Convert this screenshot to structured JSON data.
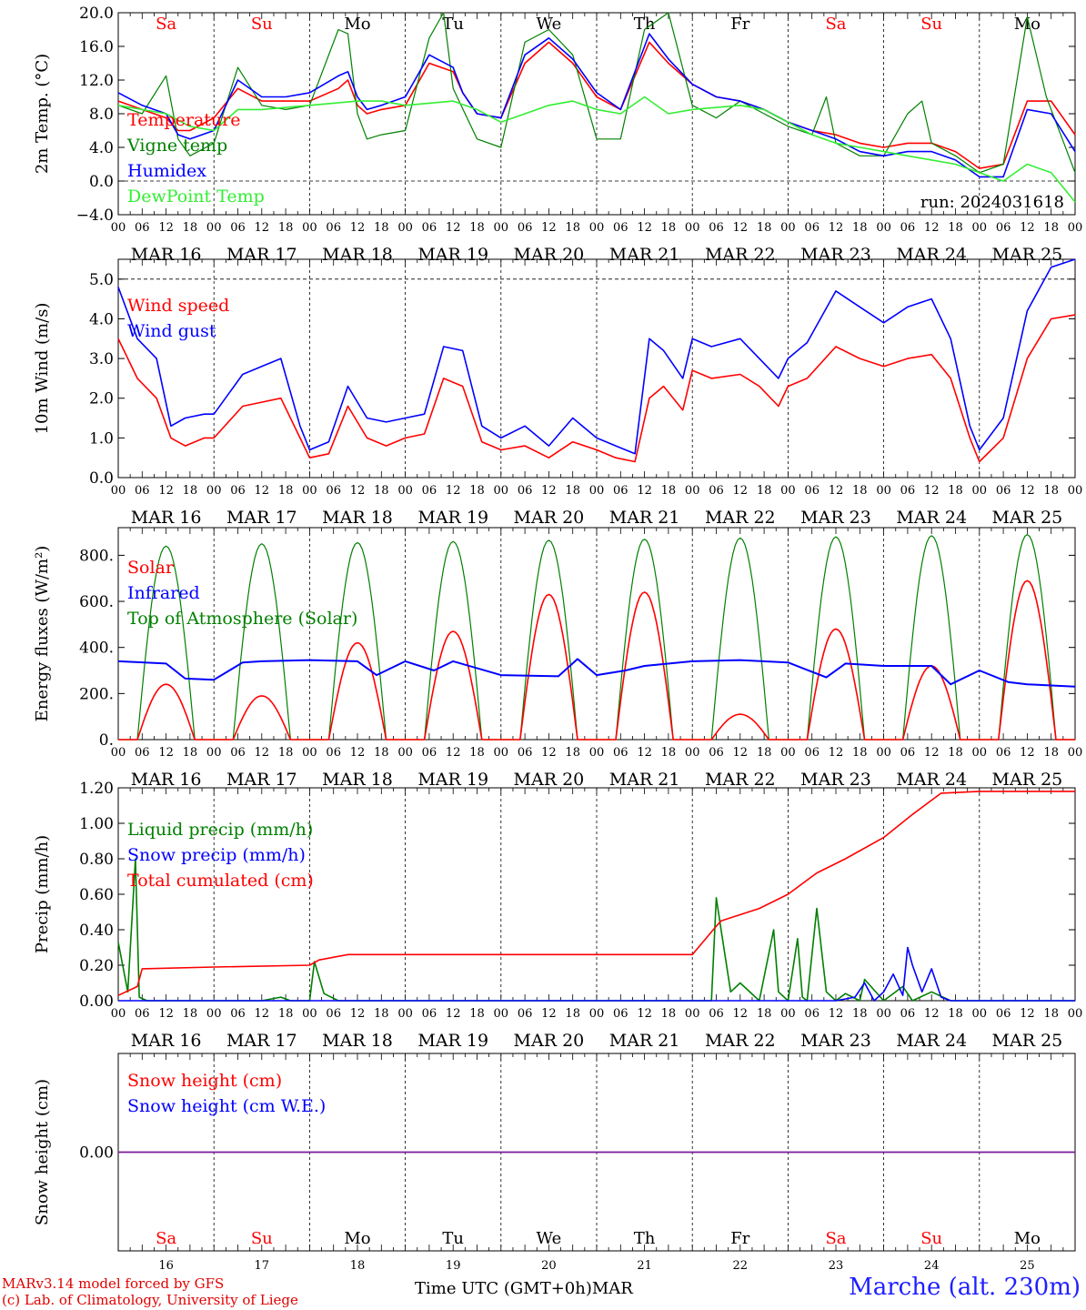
{
  "colors": {
    "red": "#ff0000",
    "green": "#008000",
    "blue": "#0000ff",
    "lightgreen": "#33ee33",
    "purple": "#7a1a9a",
    "weekend": "#ff0000",
    "weekday": "#000000"
  },
  "common": {
    "day_letters": [
      "Sa",
      "Su",
      "Mo",
      "Tu",
      "We",
      "Th",
      "Fr",
      "Sa",
      "Su",
      "Mo"
    ],
    "weekend_flags": [
      true,
      true,
      false,
      false,
      false,
      false,
      false,
      true,
      true,
      false
    ],
    "hour_ticks": [
      "00",
      "06",
      "12",
      "18"
    ],
    "final_tick": "00",
    "date_labels": [
      "MAR 16",
      "MAR 17",
      "MAR 18",
      "MAR 19",
      "MAR 20",
      "MAR 21",
      "MAR 22",
      "MAR 23",
      "MAR 24",
      "MAR 25"
    ],
    "day_numbers": [
      "16",
      "17",
      "18",
      "19",
      "20",
      "21",
      "22",
      "23",
      "24",
      "25"
    ],
    "x_title": "Time UTC (GMT+0h)",
    "month": "MAR",
    "run_label": "run: 2024031618"
  },
  "chart_data": [
    {
      "type": "line",
      "ylabel": "2m Temp. (°C)",
      "ylim": [
        -4,
        20
      ],
      "y_ticks": [
        "20.0",
        "16.0",
        "12.0",
        "8.0",
        "4.0",
        "0.0",
        "−4.0"
      ],
      "dashed_zero": true,
      "x_unit": "days since MAR 16 00 UTC",
      "series": [
        {
          "name": "Temperature",
          "color_key": "red",
          "x": [
            0,
            0.25,
            0.5,
            0.625,
            0.75,
            1,
            1.25,
            1.5,
            1.75,
            2,
            2.3,
            2.4,
            2.5,
            2.6,
            2.75,
            3,
            3.25,
            3.5,
            3.6,
            3.75,
            4,
            4.25,
            4.5,
            4.75,
            5,
            5.25,
            5.55,
            5.75,
            6,
            6.25,
            6.5,
            6.75,
            7,
            7.25,
            7.5,
            7.75,
            8,
            8.25,
            8.5,
            8.75,
            9,
            9.25,
            9.5,
            9.75,
            10
          ],
          "y": [
            9.5,
            8.5,
            7.5,
            6.0,
            6.0,
            7.5,
            11.0,
            9.5,
            9.5,
            9.5,
            11.0,
            12.0,
            9.0,
            8.0,
            8.5,
            9.0,
            14.0,
            13.0,
            10.5,
            8.0,
            7.5,
            14.0,
            16.5,
            14.0,
            10.0,
            8.5,
            16.5,
            14.0,
            11.5,
            10.0,
            9.5,
            8.5,
            7.0,
            6.0,
            5.5,
            4.5,
            4.0,
            4.5,
            4.5,
            3.5,
            1.5,
            2.0,
            9.5,
            9.5,
            5.5
          ]
        },
        {
          "name": "Vigne temp",
          "color_key": "green",
          "x": [
            0,
            0.25,
            0.5,
            0.625,
            0.75,
            1,
            1.25,
            1.5,
            1.75,
            2,
            2.3,
            2.4,
            2.5,
            2.6,
            2.75,
            3,
            3.25,
            3.4,
            3.5,
            3.75,
            4,
            4.25,
            4.5,
            4.75,
            5,
            5.25,
            5.5,
            5.75,
            6,
            6.25,
            6.5,
            6.75,
            7,
            7.25,
            7.4,
            7.5,
            7.75,
            8,
            8.25,
            8.4,
            8.5,
            8.75,
            9,
            9.25,
            9.5,
            9.7,
            10
          ],
          "y": [
            9.0,
            8.0,
            12.5,
            5.0,
            3.0,
            4.5,
            13.5,
            9.0,
            8.5,
            9.0,
            18.0,
            17.5,
            8.0,
            5.0,
            5.5,
            6.0,
            17.0,
            20.0,
            11.0,
            5.0,
            4.0,
            16.5,
            18.0,
            15.0,
            5.0,
            5.0,
            18.0,
            20.0,
            9.0,
            7.5,
            9.5,
            8.0,
            6.5,
            5.5,
            10.0,
            4.5,
            3.0,
            3.0,
            8.0,
            9.5,
            4.5,
            3.0,
            1.0,
            2.0,
            19.5,
            10.0,
            1.0
          ]
        },
        {
          "name": "Humidex",
          "color_key": "blue",
          "x": [
            0,
            0.25,
            0.5,
            0.625,
            0.75,
            1,
            1.25,
            1.5,
            1.75,
            2,
            2.3,
            2.4,
            2.5,
            2.6,
            2.75,
            3,
            3.25,
            3.5,
            3.6,
            3.75,
            4,
            4.25,
            4.5,
            4.75,
            5,
            5.25,
            5.55,
            5.75,
            6,
            6.25,
            6.5,
            6.75,
            7,
            7.25,
            7.5,
            7.75,
            8,
            8.25,
            8.5,
            8.75,
            9,
            9.25,
            9.5,
            9.75,
            10
          ],
          "y": [
            10.5,
            9.0,
            8.0,
            5.5,
            5.0,
            6.0,
            12.0,
            10.0,
            10.0,
            10.5,
            12.5,
            13.0,
            10.0,
            8.5,
            9.0,
            10.0,
            15.0,
            13.5,
            10.5,
            8.0,
            7.5,
            15.0,
            17.0,
            14.5,
            10.5,
            8.5,
            17.5,
            14.5,
            11.5,
            10.0,
            9.5,
            8.5,
            7.0,
            6.0,
            5.0,
            3.5,
            3.0,
            3.5,
            3.5,
            2.5,
            0.5,
            0.5,
            8.5,
            8.0,
            3.5
          ]
        },
        {
          "name": "DewPoint Temp",
          "color_key": "lightgreen",
          "x": [
            0,
            0.5,
            0.75,
            1,
            1.25,
            1.5,
            2,
            2.5,
            2.75,
            3,
            3.5,
            3.75,
            4,
            4.5,
            4.75,
            5,
            5.25,
            5.5,
            5.75,
            6,
            6.5,
            6.75,
            7,
            7.25,
            7.5,
            7.75,
            8,
            8.25,
            8.5,
            8.75,
            9,
            9.25,
            9.5,
            9.75,
            10
          ],
          "y": [
            9.0,
            8.0,
            6.5,
            6.0,
            8.5,
            8.5,
            9.0,
            9.5,
            9.5,
            9.0,
            9.5,
            8.5,
            7.0,
            9.0,
            9.5,
            8.5,
            8.0,
            10.0,
            8.0,
            8.5,
            9.0,
            8.5,
            7.0,
            5.5,
            4.5,
            4.0,
            3.5,
            3.0,
            2.5,
            2.0,
            1.0,
            0.0,
            2.0,
            1.0,
            -2.5
          ]
        }
      ]
    },
    {
      "type": "line",
      "ylabel": "10m Wind (m/s)",
      "ylim": [
        0,
        5.5
      ],
      "y_ticks": [
        "5.0",
        "4.0",
        "3.0",
        "2.0",
        "1.0",
        "0.0"
      ],
      "dashed_top": 5.0,
      "x_unit": "days since MAR 16 00 UTC",
      "series": [
        {
          "name": "Wind speed",
          "color_key": "red",
          "x": [
            0,
            0.2,
            0.4,
            0.55,
            0.7,
            0.9,
            1.0,
            1.3,
            1.5,
            1.7,
            1.9,
            2.0,
            2.2,
            2.4,
            2.6,
            2.8,
            3.0,
            3.2,
            3.4,
            3.6,
            3.8,
            4.0,
            4.25,
            4.5,
            4.75,
            5.0,
            5.2,
            5.4,
            5.55,
            5.7,
            5.9,
            6.0,
            6.2,
            6.5,
            6.7,
            6.9,
            7.0,
            7.2,
            7.5,
            7.75,
            8.0,
            8.25,
            8.5,
            8.7,
            8.9,
            9.0,
            9.25,
            9.5,
            9.75,
            10
          ],
          "y": [
            3.5,
            2.5,
            2.0,
            1.0,
            0.8,
            1.0,
            1.0,
            1.8,
            1.9,
            2.0,
            1.0,
            0.5,
            0.6,
            1.8,
            1.0,
            0.8,
            1.0,
            1.1,
            2.5,
            2.3,
            0.9,
            0.7,
            0.8,
            0.5,
            0.9,
            0.7,
            0.5,
            0.4,
            2.0,
            2.3,
            1.7,
            2.7,
            2.5,
            2.6,
            2.3,
            1.8,
            2.3,
            2.5,
            3.3,
            3.0,
            2.8,
            3.0,
            3.1,
            2.5,
            1.0,
            0.4,
            1.0,
            3.0,
            4.0,
            4.1
          ]
        },
        {
          "name": "Wind gust",
          "color_key": "blue",
          "x": [
            0,
            0.2,
            0.4,
            0.55,
            0.7,
            0.9,
            1.0,
            1.3,
            1.5,
            1.7,
            1.9,
            2.0,
            2.2,
            2.4,
            2.6,
            2.8,
            3.0,
            3.2,
            3.4,
            3.6,
            3.8,
            4.0,
            4.25,
            4.5,
            4.75,
            5.0,
            5.2,
            5.4,
            5.55,
            5.7,
            5.9,
            6.0,
            6.2,
            6.5,
            6.7,
            6.9,
            7.0,
            7.2,
            7.5,
            7.75,
            8.0,
            8.25,
            8.5,
            8.7,
            8.9,
            9.0,
            9.25,
            9.5,
            9.75,
            10
          ],
          "y": [
            4.8,
            3.5,
            3.0,
            1.3,
            1.5,
            1.6,
            1.6,
            2.6,
            2.8,
            3.0,
            1.3,
            0.7,
            0.9,
            2.3,
            1.5,
            1.4,
            1.5,
            1.6,
            3.3,
            3.2,
            1.3,
            1.0,
            1.3,
            0.8,
            1.5,
            1.0,
            0.8,
            0.6,
            3.5,
            3.2,
            2.5,
            3.5,
            3.3,
            3.5,
            3.0,
            2.5,
            3.0,
            3.4,
            4.7,
            4.3,
            3.9,
            4.3,
            4.5,
            3.5,
            1.3,
            0.7,
            1.5,
            4.2,
            5.3,
            5.5
          ]
        }
      ]
    },
    {
      "type": "line",
      "ylabel": "Energy fluxes (W/m²)",
      "ylim": [
        0,
        920
      ],
      "y_ticks": [
        "800.",
        "600.",
        "400.",
        "200.",
        "0."
      ],
      "x_unit": "days since MAR 16 00 UTC",
      "toa_peaks": [
        840,
        850,
        855,
        860,
        865,
        870,
        875,
        880,
        885,
        890
      ],
      "solar_peaks": [
        240,
        190,
        420,
        470,
        630,
        640,
        110,
        480,
        320,
        690
      ],
      "day_window": [
        0.2,
        0.8
      ],
      "series": [
        {
          "name": "Solar",
          "color_key": "red"
        },
        {
          "name": "Infrared",
          "color_key": "blue",
          "x": [
            0,
            0.5,
            0.7,
            1.0,
            1.3,
            1.5,
            2.0,
            2.5,
            2.7,
            3.0,
            3.3,
            3.5,
            4.0,
            4.6,
            4.8,
            5.0,
            5.3,
            5.5,
            6.0,
            6.5,
            7.0,
            7.4,
            7.6,
            8.0,
            8.5,
            8.7,
            9.0,
            9.3,
            9.5,
            10
          ],
          "y": [
            340,
            330,
            265,
            260,
            335,
            340,
            345,
            340,
            280,
            340,
            300,
            340,
            280,
            275,
            350,
            280,
            300,
            320,
            340,
            345,
            335,
            270,
            330,
            320,
            320,
            240,
            300,
            250,
            240,
            230
          ]
        },
        {
          "name": "Top of Atmosphere (Solar)",
          "color_key": "green"
        }
      ]
    },
    {
      "type": "line",
      "ylabel": "Precip (mm/h)",
      "ylim": [
        0,
        1.2
      ],
      "y_ticks": [
        "1.20",
        "1.00",
        "0.80",
        "0.60",
        "0.40",
        "0.20",
        "0.00"
      ],
      "x_unit": "days since MAR 16 00 UTC",
      "series": [
        {
          "name": "Liquid precip (mm/h)",
          "color_key": "green",
          "x": [
            0,
            0.1,
            0.18,
            0.22,
            0.3,
            0.5,
            1.0,
            1.5,
            1.7,
            1.8,
            2.0,
            2.05,
            2.15,
            2.3,
            2.5,
            6.2,
            6.25,
            6.3,
            6.4,
            6.5,
            6.7,
            6.85,
            6.9,
            7.0,
            7.1,
            7.15,
            7.2,
            7.3,
            7.4,
            7.5,
            7.6,
            7.75,
            7.8,
            8.0,
            8.2,
            8.3,
            8.5,
            8.7,
            10
          ],
          "y": [
            0.33,
            0.05,
            0.8,
            0.02,
            0.0,
            0.0,
            0.0,
            0.0,
            0.02,
            0.0,
            0.0,
            0.22,
            0.04,
            0.0,
            0.0,
            0.0,
            0.58,
            0.4,
            0.05,
            0.1,
            0.0,
            0.4,
            0.05,
            0.0,
            0.35,
            0.02,
            0.0,
            0.52,
            0.05,
            0.0,
            0.04,
            0.0,
            0.12,
            0.0,
            0.08,
            0.0,
            0.05,
            0.0,
            0.0
          ]
        },
        {
          "name": "Snow precip (mm/h)",
          "color_key": "blue",
          "x": [
            0,
            7.5,
            7.7,
            7.8,
            7.9,
            8.0,
            8.1,
            8.2,
            8.25,
            8.3,
            8.4,
            8.5,
            8.6,
            8.7,
            10
          ],
          "y": [
            0,
            0,
            0.02,
            0.1,
            0.0,
            0.05,
            0.15,
            0.03,
            0.3,
            0.2,
            0.05,
            0.18,
            0.02,
            0.0,
            0
          ]
        },
        {
          "name": "Total cumulated (cm)",
          "color_key": "red",
          "x": [
            0,
            0.2,
            0.25,
            1.0,
            2.0,
            2.1,
            2.4,
            3.0,
            4.0,
            5.0,
            6.0,
            6.25,
            6.3,
            6.7,
            7.0,
            7.3,
            7.6,
            8.0,
            8.3,
            8.6,
            9.0,
            10
          ],
          "y": [
            0.03,
            0.08,
            0.18,
            0.19,
            0.2,
            0.23,
            0.26,
            0.26,
            0.26,
            0.26,
            0.26,
            0.42,
            0.45,
            0.52,
            0.6,
            0.72,
            0.8,
            0.92,
            1.05,
            1.17,
            1.18,
            1.18
          ]
        }
      ]
    },
    {
      "type": "line",
      "ylabel": "Snow height (cm)",
      "ylim": [
        -1,
        1
      ],
      "y_ticks": [
        "0.00"
      ],
      "x_unit": "days since MAR 16 00 UTC",
      "series": [
        {
          "name": "Snow height (cm)",
          "color_key": "red",
          "x": [
            0,
            10
          ],
          "y": [
            0,
            0
          ]
        },
        {
          "name": "Snow height (cm W.E.)",
          "color_key": "blue",
          "x": [
            0,
            10
          ],
          "y": [
            0,
            0
          ]
        }
      ]
    }
  ],
  "footer": {
    "model_line": "MARv3.14 model forced by GFS",
    "credit_line": "(c) Lab. of Climatology, University of Liege",
    "station": "Marche (alt. 230m)"
  }
}
